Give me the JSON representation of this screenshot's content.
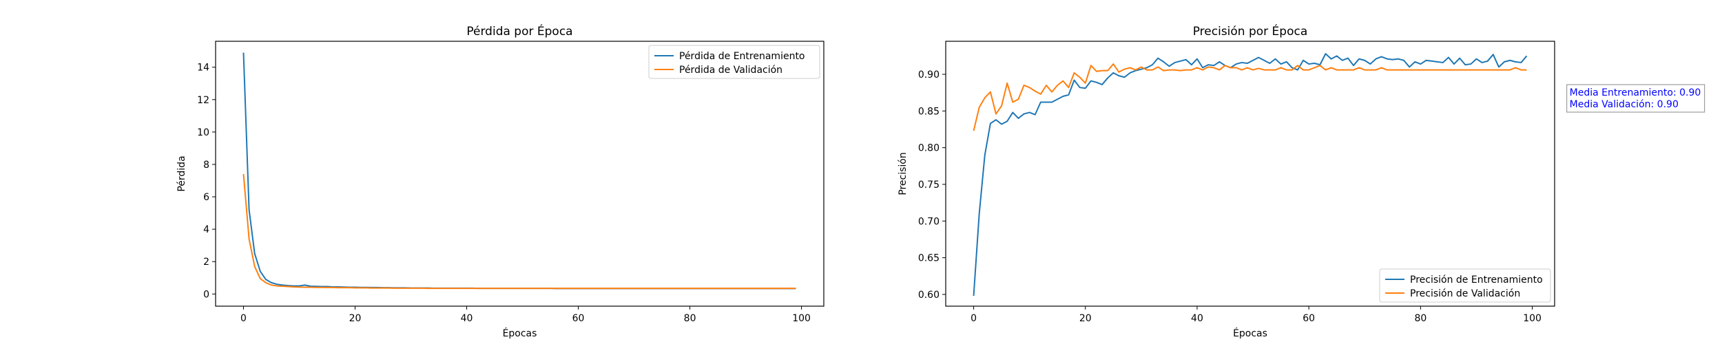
{
  "chart_data": [
    {
      "type": "line",
      "title": "Pérdida por Época",
      "xlabel": "Épocas",
      "ylabel": "Pérdida",
      "xlim": [
        -5,
        104
      ],
      "ylim": [
        -0.75,
        15.6
      ],
      "xticks": [
        0,
        20,
        40,
        60,
        80,
        100
      ],
      "yticks": [
        0,
        2,
        4,
        6,
        8,
        10,
        12,
        14
      ],
      "legend": "top-right",
      "grid": false,
      "series": [
        {
          "name": "Pérdida de Entrenamiento",
          "color": "#1f77b4",
          "x": [
            0,
            1,
            2,
            3,
            4,
            5,
            6,
            7,
            8,
            9,
            10,
            11,
            12,
            13,
            14,
            15,
            16,
            17,
            18,
            19,
            20,
            21,
            22,
            23,
            24,
            25,
            26,
            27,
            28,
            29,
            30,
            31,
            32,
            33,
            34,
            35,
            36,
            37,
            38,
            39,
            40,
            41,
            42,
            43,
            44,
            45,
            46,
            47,
            48,
            49,
            50,
            51,
            52,
            53,
            54,
            55,
            56,
            57,
            58,
            59,
            60,
            61,
            62,
            63,
            64,
            65,
            66,
            67,
            68,
            69,
            70,
            71,
            72,
            73,
            74,
            75,
            76,
            77,
            78,
            79,
            80,
            81,
            82,
            83,
            84,
            85,
            86,
            87,
            88,
            89,
            90,
            91,
            92,
            93,
            94,
            95,
            96,
            97,
            98,
            99
          ],
          "y": [
            14.9,
            5.2,
            2.5,
            1.4,
            0.9,
            0.7,
            0.6,
            0.55,
            0.52,
            0.5,
            0.5,
            0.55,
            0.48,
            0.47,
            0.46,
            0.46,
            0.44,
            0.44,
            0.43,
            0.42,
            0.42,
            0.41,
            0.41,
            0.4,
            0.4,
            0.39,
            0.39,
            0.38,
            0.38,
            0.38,
            0.37,
            0.37,
            0.37,
            0.37,
            0.36,
            0.36,
            0.36,
            0.36,
            0.36,
            0.36,
            0.36,
            0.36,
            0.35,
            0.35,
            0.35,
            0.35,
            0.35,
            0.35,
            0.35,
            0.35,
            0.35,
            0.35,
            0.35,
            0.35,
            0.35,
            0.35,
            0.34,
            0.34,
            0.34,
            0.34,
            0.34,
            0.34,
            0.34,
            0.34,
            0.34,
            0.34,
            0.34,
            0.34,
            0.34,
            0.34,
            0.34,
            0.34,
            0.34,
            0.34,
            0.34,
            0.34,
            0.34,
            0.34,
            0.34,
            0.34,
            0.34,
            0.34,
            0.34,
            0.34,
            0.34,
            0.34,
            0.34,
            0.34,
            0.34,
            0.34,
            0.34,
            0.34,
            0.34,
            0.34,
            0.34,
            0.34,
            0.34,
            0.34,
            0.34,
            0.34
          ]
        },
        {
          "name": "Pérdida de Validación",
          "color": "#ff7f0e",
          "x": [
            0,
            1,
            2,
            3,
            4,
            5,
            6,
            7,
            8,
            9,
            10,
            11,
            12,
            13,
            14,
            15,
            16,
            17,
            18,
            19,
            20,
            21,
            22,
            23,
            24,
            25,
            26,
            27,
            28,
            29,
            30,
            31,
            32,
            33,
            34,
            35,
            36,
            37,
            38,
            39,
            40,
            41,
            42,
            43,
            44,
            45,
            46,
            47,
            48,
            49,
            50,
            51,
            52,
            53,
            54,
            55,
            56,
            57,
            58,
            59,
            60,
            61,
            62,
            63,
            64,
            65,
            66,
            67,
            68,
            69,
            70,
            71,
            72,
            73,
            74,
            75,
            76,
            77,
            78,
            79,
            80,
            81,
            82,
            83,
            84,
            85,
            86,
            87,
            88,
            89,
            90,
            91,
            92,
            93,
            94,
            95,
            96,
            97,
            98,
            99
          ],
          "y": [
            7.4,
            3.4,
            1.7,
            0.95,
            0.7,
            0.55,
            0.5,
            0.48,
            0.46,
            0.44,
            0.43,
            0.42,
            0.42,
            0.41,
            0.41,
            0.4,
            0.4,
            0.39,
            0.39,
            0.39,
            0.38,
            0.38,
            0.38,
            0.37,
            0.37,
            0.37,
            0.37,
            0.36,
            0.36,
            0.36,
            0.36,
            0.36,
            0.36,
            0.35,
            0.35,
            0.35,
            0.35,
            0.35,
            0.35,
            0.35,
            0.35,
            0.35,
            0.35,
            0.35,
            0.35,
            0.35,
            0.35,
            0.35,
            0.35,
            0.35,
            0.35,
            0.35,
            0.35,
            0.35,
            0.35,
            0.35,
            0.35,
            0.35,
            0.35,
            0.35,
            0.35,
            0.35,
            0.35,
            0.35,
            0.35,
            0.35,
            0.35,
            0.35,
            0.35,
            0.35,
            0.35,
            0.35,
            0.35,
            0.35,
            0.35,
            0.35,
            0.35,
            0.35,
            0.35,
            0.35,
            0.35,
            0.35,
            0.35,
            0.35,
            0.35,
            0.35,
            0.35,
            0.35,
            0.35,
            0.35,
            0.35,
            0.35,
            0.35,
            0.35,
            0.35,
            0.35,
            0.35,
            0.35,
            0.35,
            0.35
          ]
        }
      ]
    },
    {
      "type": "line",
      "title": "Precisión por Época",
      "xlabel": "Épocas",
      "ylabel": "Precisión",
      "xlim": [
        -5,
        104
      ],
      "ylim": [
        0.584,
        0.945
      ],
      "xticks": [
        0,
        20,
        40,
        60,
        80,
        100
      ],
      "yticks": [
        0.6,
        0.65,
        0.7,
        0.75,
        0.8,
        0.85,
        0.9
      ],
      "ytick_decimals": 2,
      "legend": "bottom-right",
      "grid": false,
      "annotation": [
        "Media Entrenamiento: 0.90",
        "Media Validación: 0.90"
      ],
      "annotation_color": "#0000ff",
      "series": [
        {
          "name": "Precisión de Entrenamiento",
          "color": "#1f77b4",
          "x": [
            0,
            1,
            2,
            3,
            4,
            5,
            6,
            7,
            8,
            9,
            10,
            11,
            12,
            13,
            14,
            15,
            16,
            17,
            18,
            19,
            20,
            21,
            22,
            23,
            24,
            25,
            26,
            27,
            28,
            29,
            30,
            31,
            32,
            33,
            34,
            35,
            36,
            37,
            38,
            39,
            40,
            41,
            42,
            43,
            44,
            45,
            46,
            47,
            48,
            49,
            50,
            51,
            52,
            53,
            54,
            55,
            56,
            57,
            58,
            59,
            60,
            61,
            62,
            63,
            64,
            65,
            66,
            67,
            68,
            69,
            70,
            71,
            72,
            73,
            74,
            75,
            76,
            77,
            78,
            79,
            80,
            81,
            82,
            83,
            84,
            85,
            86,
            87,
            88,
            89,
            90,
            91,
            92,
            93,
            94,
            95,
            96,
            97,
            98,
            99
          ],
          "y": [
            0.598,
            0.71,
            0.79,
            0.833,
            0.838,
            0.832,
            0.836,
            0.848,
            0.84,
            0.846,
            0.848,
            0.845,
            0.862,
            0.862,
            0.862,
            0.866,
            0.87,
            0.872,
            0.892,
            0.882,
            0.881,
            0.891,
            0.889,
            0.886,
            0.895,
            0.902,
            0.898,
            0.896,
            0.902,
            0.905,
            0.907,
            0.909,
            0.913,
            0.922,
            0.917,
            0.911,
            0.916,
            0.918,
            0.92,
            0.913,
            0.921,
            0.909,
            0.913,
            0.912,
            0.917,
            0.912,
            0.909,
            0.914,
            0.916,
            0.915,
            0.919,
            0.923,
            0.919,
            0.915,
            0.921,
            0.914,
            0.917,
            0.909,
            0.906,
            0.919,
            0.914,
            0.915,
            0.913,
            0.928,
            0.921,
            0.925,
            0.919,
            0.922,
            0.912,
            0.921,
            0.919,
            0.914,
            0.921,
            0.924,
            0.921,
            0.92,
            0.921,
            0.919,
            0.91,
            0.917,
            0.914,
            0.919,
            0.918,
            0.917,
            0.916,
            0.923,
            0.914,
            0.922,
            0.913,
            0.914,
            0.921,
            0.916,
            0.918,
            0.927,
            0.91,
            0.917,
            0.919,
            0.917,
            0.916,
            0.925
          ]
        },
        {
          "name": "Precisión de Validación",
          "color": "#ff7f0e",
          "x": [
            0,
            1,
            2,
            3,
            4,
            5,
            6,
            7,
            8,
            9,
            10,
            11,
            12,
            13,
            14,
            15,
            16,
            17,
            18,
            19,
            20,
            21,
            22,
            23,
            24,
            25,
            26,
            27,
            28,
            29,
            30,
            31,
            32,
            33,
            34,
            35,
            36,
            37,
            38,
            39,
            40,
            41,
            42,
            43,
            44,
            45,
            46,
            47,
            48,
            49,
            50,
            51,
            52,
            53,
            54,
            55,
            56,
            57,
            58,
            59,
            60,
            61,
            62,
            63,
            64,
            65,
            66,
            67,
            68,
            69,
            70,
            71,
            72,
            73,
            74,
            75,
            76,
            77,
            78,
            79,
            80,
            81,
            82,
            83,
            84,
            85,
            86,
            87,
            88,
            89,
            90,
            91,
            92,
            93,
            94,
            95,
            96,
            97,
            98,
            99
          ],
          "y": [
            0.823,
            0.855,
            0.868,
            0.876,
            0.846,
            0.857,
            0.888,
            0.862,
            0.866,
            0.885,
            0.882,
            0.877,
            0.873,
            0.885,
            0.876,
            0.885,
            0.891,
            0.882,
            0.902,
            0.896,
            0.888,
            0.912,
            0.904,
            0.905,
            0.905,
            0.914,
            0.903,
            0.907,
            0.909,
            0.906,
            0.91,
            0.906,
            0.906,
            0.91,
            0.905,
            0.906,
            0.906,
            0.905,
            0.906,
            0.906,
            0.909,
            0.906,
            0.91,
            0.909,
            0.906,
            0.912,
            0.909,
            0.909,
            0.906,
            0.909,
            0.906,
            0.908,
            0.906,
            0.906,
            0.906,
            0.909,
            0.906,
            0.906,
            0.912,
            0.906,
            0.906,
            0.909,
            0.912,
            0.906,
            0.909,
            0.906,
            0.906,
            0.906,
            0.906,
            0.909,
            0.906,
            0.906,
            0.906,
            0.909,
            0.906,
            0.906,
            0.906,
            0.906,
            0.906,
            0.906,
            0.906,
            0.906,
            0.906,
            0.906,
            0.906,
            0.906,
            0.906,
            0.906,
            0.906,
            0.906,
            0.906,
            0.906,
            0.906,
            0.906,
            0.906,
            0.906,
            0.906,
            0.909,
            0.906,
            0.906
          ]
        }
      ]
    }
  ]
}
